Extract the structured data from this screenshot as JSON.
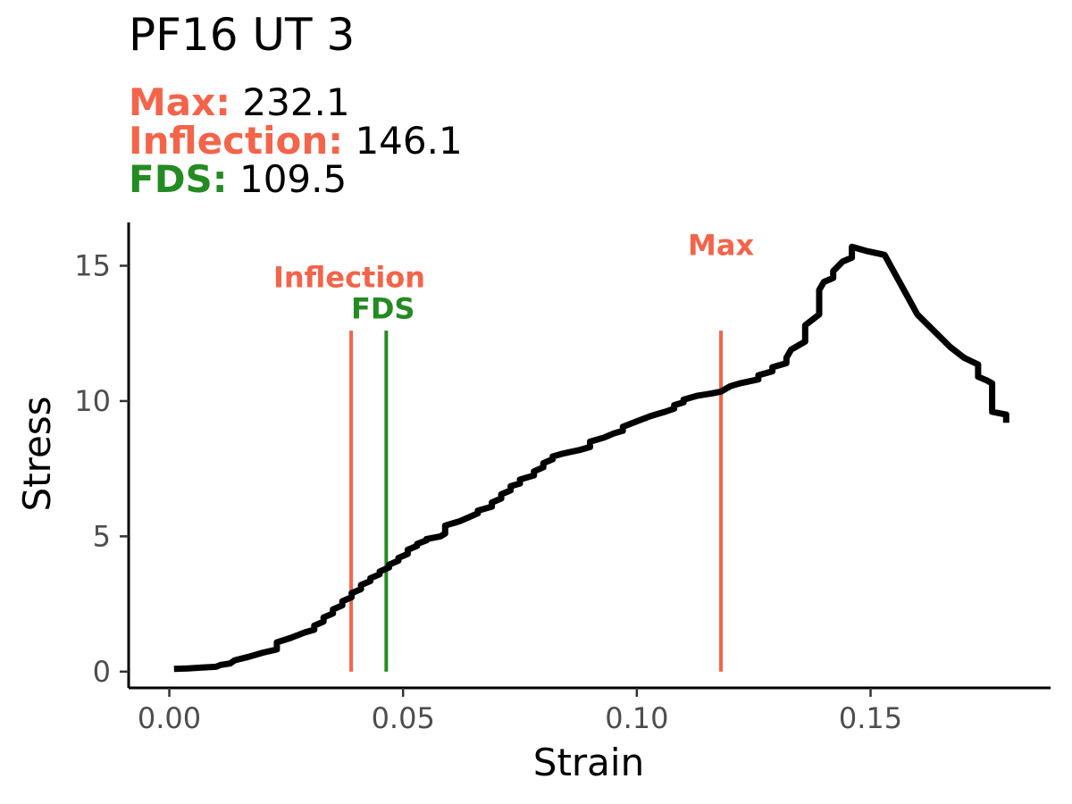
{
  "title": "PF16 UT 3",
  "subtitle": {
    "max": {
      "label": "Max:",
      "value": "232.1"
    },
    "inflection": {
      "label": "Inflection:",
      "value": "146.1"
    },
    "fds": {
      "label": "FDS:",
      "value": "109.5"
    }
  },
  "colors": {
    "max": "#f4644a",
    "inflection": "#f4644a",
    "fds": "#238b22",
    "line": "#000000",
    "tick_text": "#4d4d4d"
  },
  "chart_data": {
    "type": "line",
    "xlabel": "Strain",
    "ylabel": "Stress",
    "xlim": [
      -0.0087,
      0.1885
    ],
    "ylim": [
      -0.6,
      16.6
    ],
    "x_ticks": [
      0.0,
      0.05,
      0.1,
      0.15
    ],
    "x_tick_labels": [
      "0.00",
      "0.05",
      "0.10",
      "0.15"
    ],
    "y_ticks": [
      0,
      5,
      10,
      15
    ],
    "y_tick_labels": [
      "0",
      "5",
      "10",
      "15"
    ],
    "grid": false,
    "legend": "none",
    "series": [
      {
        "x": [
          0.001,
          0.004,
          0.007,
          0.01,
          0.011,
          0.013,
          0.014,
          0.017,
          0.02,
          0.023,
          0.023,
          0.026,
          0.029,
          0.031,
          0.031,
          0.033,
          0.033,
          0.035,
          0.035,
          0.037,
          0.037,
          0.039,
          0.039,
          0.041,
          0.041,
          0.043,
          0.043,
          0.045,
          0.045,
          0.047,
          0.047,
          0.049,
          0.049,
          0.051,
          0.051,
          0.053,
          0.053,
          0.055,
          0.055,
          0.058,
          0.059,
          0.059,
          0.062,
          0.064,
          0.066,
          0.066,
          0.069,
          0.069,
          0.071,
          0.071,
          0.073,
          0.073,
          0.075,
          0.075,
          0.078,
          0.078,
          0.08,
          0.08,
          0.082,
          0.082,
          0.084,
          0.088,
          0.09,
          0.09,
          0.093,
          0.095,
          0.097,
          0.097,
          0.1,
          0.103,
          0.106,
          0.108,
          0.108,
          0.11,
          0.11,
          0.113,
          0.116,
          0.118,
          0.119,
          0.12,
          0.122,
          0.126,
          0.126,
          0.129,
          0.129,
          0.132,
          0.132,
          0.133,
          0.136,
          0.136,
          0.139,
          0.139,
          0.14,
          0.142,
          0.142,
          0.144,
          0.146,
          0.146,
          0.147,
          0.149,
          0.153,
          0.16,
          0.167,
          0.17,
          0.173,
          0.173,
          0.175,
          0.176,
          0.176,
          0.179,
          0.179
        ],
        "y": [
          0.1,
          0.12,
          0.15,
          0.18,
          0.25,
          0.3,
          0.42,
          0.55,
          0.7,
          0.82,
          1.08,
          1.25,
          1.45,
          1.55,
          1.7,
          1.85,
          2.0,
          2.15,
          2.3,
          2.45,
          2.6,
          2.75,
          2.9,
          3.05,
          3.2,
          3.35,
          3.45,
          3.6,
          3.7,
          3.85,
          3.95,
          4.1,
          4.2,
          4.35,
          4.5,
          4.65,
          4.72,
          4.85,
          4.9,
          5.0,
          5.1,
          5.4,
          5.55,
          5.7,
          5.85,
          5.95,
          6.1,
          6.25,
          6.4,
          6.55,
          6.7,
          6.85,
          6.95,
          7.1,
          7.25,
          7.4,
          7.55,
          7.7,
          7.85,
          7.95,
          8.05,
          8.2,
          8.3,
          8.5,
          8.65,
          8.8,
          8.9,
          9.05,
          9.25,
          9.45,
          9.6,
          9.72,
          9.85,
          9.95,
          10.05,
          10.2,
          10.28,
          10.35,
          10.45,
          10.55,
          10.65,
          10.8,
          10.95,
          11.1,
          11.25,
          11.4,
          11.6,
          11.9,
          12.2,
          12.8,
          13.2,
          14.1,
          14.4,
          14.55,
          14.8,
          15.15,
          15.3,
          15.7,
          15.65,
          15.55,
          15.4,
          13.2,
          12.0,
          11.6,
          11.35,
          10.9,
          10.75,
          10.65,
          9.6,
          9.5,
          9.2
        ]
      }
    ],
    "vlines": [
      {
        "name": "Inflection",
        "x": 0.0389,
        "ymax": 12.6,
        "label_y": 14.2,
        "label_x": 0.0385
      },
      {
        "name": "FDS",
        "x": 0.0464,
        "ymax": 12.6,
        "label_y": 13.05,
        "label_x": 0.0457
      },
      {
        "name": "Max",
        "x": 0.118,
        "ymax": 12.6,
        "label_y": 15.4,
        "label_x": 0.118
      }
    ]
  }
}
